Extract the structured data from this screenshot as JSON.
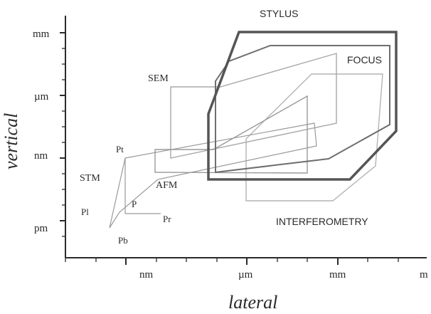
{
  "axes": {
    "x_title": "lateral",
    "y_title": "vertical",
    "x_tick_labels": [
      "nm",
      "µm",
      "mm",
      "m"
    ],
    "y_tick_labels": [
      "mm",
      "µm",
      "nm",
      "pm"
    ]
  },
  "regions": {
    "stylus": "STYLUS",
    "focus": "FOCUS",
    "sem": "SEM",
    "afm": "AFM",
    "stm": "STM",
    "interferometry": "INTERFEROMETRY"
  },
  "points": {
    "pt": "Pt",
    "pl": "Pl",
    "p": "P",
    "pr": "Pr",
    "pb": "Pb"
  },
  "colors": {
    "axis": "#2a2a2a",
    "stylus": "#555555",
    "focus": "#6e6e6e",
    "sem": "#a8a8a8",
    "afm": "#9a9a9a",
    "stm": "#9a9a9a",
    "interferometry": "#b4b4b4"
  }
}
